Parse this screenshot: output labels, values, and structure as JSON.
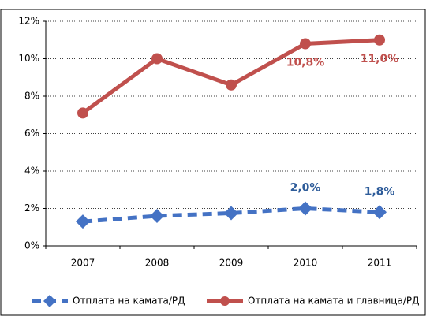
{
  "chart_data": {
    "type": "line",
    "categories": [
      "2007",
      "2008",
      "2009",
      "2010",
      "2011"
    ],
    "series": [
      {
        "name": "Отплата на камата/РД",
        "color": "#4472c4",
        "dash": true,
        "marker": "diamond",
        "label_color": "#2e5c9a",
        "values": [
          1.3,
          1.6,
          1.75,
          2.0,
          1.8
        ],
        "value_labels": [
          null,
          null,
          null,
          "2,0%",
          "1,8%"
        ]
      },
      {
        "name": "Отплата на камата и главница/РД",
        "color": "#c0504d",
        "dash": false,
        "marker": "circle",
        "label_color": "#c0504d",
        "values": [
          7.1,
          10.0,
          8.6,
          10.8,
          11.0
        ],
        "value_labels": [
          null,
          null,
          null,
          "10,8%",
          "11,0%"
        ]
      }
    ],
    "ylim": [
      0,
      12
    ],
    "yticks": [
      {
        "value": 0,
        "label": "0%"
      },
      {
        "value": 2,
        "label": "2%"
      },
      {
        "value": 4,
        "label": "4%"
      },
      {
        "value": 6,
        "label": "6%"
      },
      {
        "value": 8,
        "label": "8%"
      },
      {
        "value": 10,
        "label": "10%"
      },
      {
        "value": 12,
        "label": "12%"
      }
    ],
    "grid": true,
    "legend": "bottom"
  }
}
